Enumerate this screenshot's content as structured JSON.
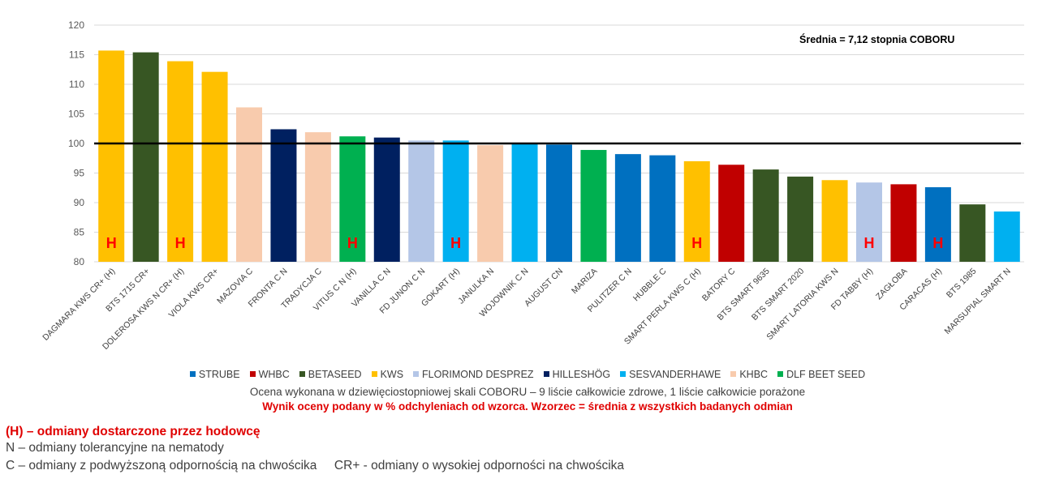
{
  "chart_data": {
    "type": "bar",
    "ylim": [
      80,
      120
    ],
    "yticks": [
      80,
      85,
      90,
      95,
      100,
      105,
      110,
      115,
      120
    ],
    "reference_line": 100,
    "grid": true,
    "legend_placement": "bottom",
    "annotation": "Średnia = 7,12 stopnia COBORU",
    "marker_text": "H",
    "categories": [
      "DAGMARA KWS CR+ (H)",
      "BTS 1715 CR+",
      "DOLEROSA KWS N CR+ (H)",
      "VIOLA KWS CR+",
      "MAZOVIA C",
      "FRONTA C N",
      "TRADYCJA C",
      "VITUS C N (H)",
      "VANILLA C N",
      "FD JUNON C N",
      "GOKART (H)",
      "JANULKA N",
      "WOJOWNIK C N",
      "AUGUST CN",
      "MARIZA",
      "PULITZER C N",
      "HUBBLE C",
      "SMART PERLA KWS C (H)",
      "BATORY C",
      "BTS SMART 9635",
      "BTS SMART 2020",
      "SMART LATORIA KWS N",
      "FD TABBY (H)",
      "ZAGŁOBA",
      "CARACAS (H)",
      "BTS 1985",
      "MARSUPIAL SMART N"
    ],
    "values": [
      115.7,
      115.4,
      113.9,
      112.1,
      106.1,
      102.4,
      101.9,
      101.2,
      101.0,
      100.5,
      100.5,
      99.7,
      100.1,
      99.8,
      98.9,
      98.2,
      98.0,
      97.0,
      96.4,
      95.6,
      94.4,
      93.8,
      93.4,
      93.1,
      92.6,
      89.7,
      88.5
    ],
    "breeders": [
      "KWS",
      "BETASEED",
      "KWS",
      "KWS",
      "KHBC",
      "HILLESHÖG",
      "KHBC",
      "DLF BEET SEED",
      "HILLESHÖG",
      "FLORIMOND DESPREZ",
      "SESVANDERHAWE",
      "KHBC",
      "SESVANDERHAWE",
      "STRUBE",
      "DLF BEET SEED",
      "STRUBE",
      "STRUBE",
      "KWS",
      "WHBC",
      "BETASEED",
      "BETASEED",
      "KWS",
      "FLORIMOND DESPREZ",
      "WHBC",
      "STRUBE",
      "BETASEED",
      "SESVANDERHAWE"
    ],
    "h_marked": [
      true,
      false,
      true,
      false,
      false,
      false,
      false,
      true,
      false,
      false,
      true,
      false,
      false,
      false,
      false,
      false,
      false,
      true,
      false,
      false,
      false,
      false,
      true,
      false,
      true,
      false,
      false
    ],
    "legend": [
      {
        "name": "STRUBE",
        "color": "#0070c0"
      },
      {
        "name": "WHBC",
        "color": "#c00000"
      },
      {
        "name": "BETASEED",
        "color": "#375623"
      },
      {
        "name": "KWS",
        "color": "#ffc000"
      },
      {
        "name": "FLORIMOND DESPREZ",
        "color": "#b4c6e7"
      },
      {
        "name": "HILLESHÖG",
        "color": "#002060"
      },
      {
        "name": "SESVANDERHAWE",
        "color": "#00b0f0"
      },
      {
        "name": "KHBC",
        "color": "#f8cbad"
      },
      {
        "name": "DLF BEET SEED",
        "color": "#00b050"
      }
    ]
  },
  "notes": {
    "scale_note": "Ocena wykonana w dziewięciostopniowej skali COBORU – 9 liście całkowicie zdrowe, 1 liście całkowicie porażone",
    "result_note": "Wynik oceny podany w % odchyleniach od wzorca. Wzorzec = średnia z wszystkich badanych odmian"
  },
  "footnotes": {
    "h_line": "(H) – odmiany dostarczone przez hodowcę",
    "n_line": "N – odmiany tolerancyjne na nematody",
    "c_line": "C – odmiany z podwyższoną odpornością na chwościka     CR+ - odmiany o wysokiej odporności na chwościka"
  }
}
